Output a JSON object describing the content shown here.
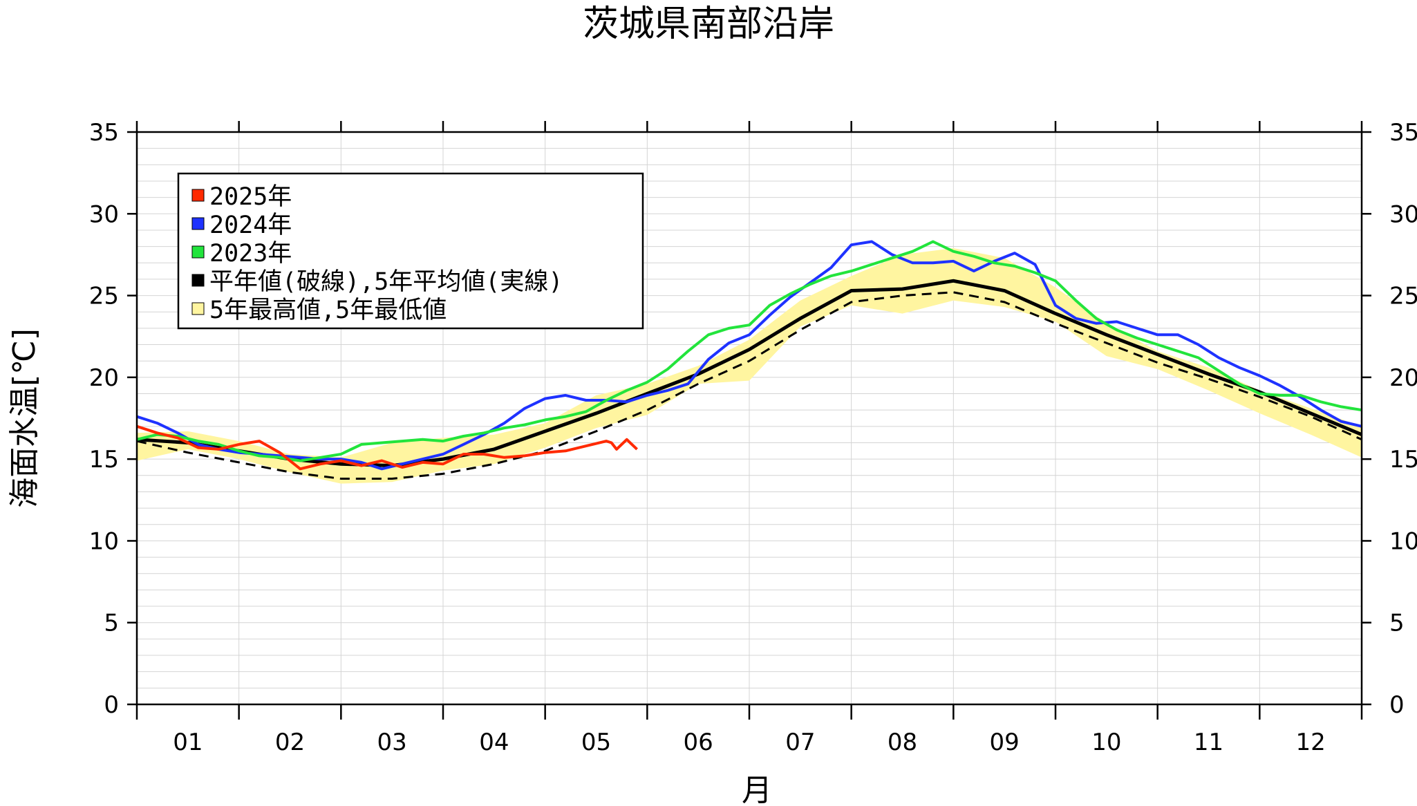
{
  "chart_data": {
    "type": "line",
    "title": "茨城県南部沿岸",
    "ylabel": "海面水温[℃]",
    "xlabel": "月",
    "xlim": [
      0,
      12
    ],
    "ylim": [
      0,
      35
    ],
    "yticks": [
      0,
      5,
      10,
      15,
      20,
      25,
      30,
      35
    ],
    "ytick_labels": [
      "0",
      "5",
      "10",
      "15",
      "20",
      "25",
      "30",
      "35"
    ],
    "month_labels": [
      "01",
      "02",
      "03",
      "04",
      "05",
      "06",
      "07",
      "08",
      "09",
      "10",
      "11",
      "12"
    ],
    "grid": true,
    "legend_position": "top-left",
    "colors": {
      "y2025": "#ff2a00",
      "y2024": "#1e32ff",
      "y2023": "#22e43c",
      "normal": "#000000",
      "band_fill": "#fff5a0"
    },
    "legend": [
      {
        "label": "2025年",
        "color": "#ff2a00"
      },
      {
        "label": "2024年",
        "color": "#1e32ff"
      },
      {
        "label": "2023年",
        "color": "#22e43c"
      },
      {
        "label": "平年値(破線),5年平均値(実線)",
        "color": "#000000"
      },
      {
        "label": "5年最高値,5年最低値",
        "color": "#fff5a0"
      }
    ],
    "band": {
      "x": [
        0,
        0.5,
        1.0,
        1.5,
        2.0,
        2.5,
        3.0,
        3.5,
        4.0,
        4.5,
        5.0,
        5.5,
        6.0,
        6.5,
        7.0,
        7.5,
        8.0,
        8.5,
        9.0,
        9.5,
        10.0,
        10.5,
        11.0,
        11.5,
        12.0
      ],
      "max": [
        16.6,
        16.7,
        16.1,
        15.3,
        15.1,
        16.0,
        16.3,
        16.5,
        17.2,
        18.9,
        19.6,
        20.7,
        22.3,
        24.7,
        26.2,
        27.5,
        27.9,
        27.3,
        25.5,
        23.3,
        21.6,
        20.6,
        19.2,
        18.1,
        17.0
      ],
      "min": [
        14.9,
        15.6,
        15.0,
        14.2,
        13.5,
        13.6,
        14.3,
        14.7,
        15.7,
        16.9,
        17.7,
        19.6,
        19.8,
        23.1,
        24.4,
        23.9,
        24.7,
        24.3,
        23.4,
        21.3,
        20.5,
        19.2,
        17.8,
        16.5,
        15.1
      ]
    },
    "series": [
      {
        "name": "2025年",
        "key": "y2025",
        "x": [
          0,
          0.2,
          0.4,
          0.6,
          0.8,
          1.0,
          1.2,
          1.4,
          1.6,
          1.8,
          2.0,
          2.2,
          2.4,
          2.6,
          2.8,
          3.0,
          3.2,
          3.4,
          3.6,
          3.8,
          4.0,
          4.2,
          4.4,
          4.6,
          4.65,
          4.7,
          4.8,
          4.85,
          4.9
        ],
        "y": [
          17.0,
          16.6,
          16.3,
          15.7,
          15.6,
          15.9,
          16.1,
          15.4,
          14.4,
          14.7,
          14.9,
          14.6,
          14.9,
          14.5,
          14.8,
          14.7,
          15.3,
          15.3,
          15.1,
          15.2,
          15.4,
          15.5,
          15.8,
          16.1,
          16.0,
          15.6,
          16.2,
          15.9,
          15.6
        ]
      },
      {
        "name": "2024年",
        "key": "y2024",
        "x": [
          0,
          0.2,
          0.4,
          0.6,
          0.8,
          1.0,
          1.2,
          1.4,
          1.6,
          1.8,
          2.0,
          2.2,
          2.4,
          2.6,
          2.8,
          3.0,
          3.2,
          3.4,
          3.6,
          3.8,
          4.0,
          4.2,
          4.4,
          4.6,
          4.8,
          5.0,
          5.2,
          5.4,
          5.6,
          5.8,
          6.0,
          6.2,
          6.4,
          6.6,
          6.8,
          7.0,
          7.2,
          7.4,
          7.6,
          7.8,
          8.0,
          8.2,
          8.4,
          8.6,
          8.8,
          9.0,
          9.2,
          9.4,
          9.6,
          9.8,
          10.0,
          10.2,
          10.4,
          10.6,
          10.8,
          11.0,
          11.2,
          11.4,
          11.6,
          11.8,
          12.0
        ],
        "y": [
          17.6,
          17.2,
          16.6,
          15.9,
          15.6,
          15.4,
          15.3,
          15.2,
          15.1,
          15.0,
          15.0,
          14.8,
          14.4,
          14.7,
          15.0,
          15.3,
          15.9,
          16.5,
          17.2,
          18.1,
          18.7,
          18.9,
          18.6,
          18.6,
          18.5,
          18.9,
          19.2,
          19.6,
          21.1,
          22.1,
          22.6,
          23.8,
          24.9,
          25.8,
          26.7,
          28.1,
          28.3,
          27.5,
          27.0,
          27.0,
          27.1,
          26.5,
          27.1,
          27.6,
          26.9,
          24.4,
          23.6,
          23.3,
          23.4,
          23.0,
          22.6,
          22.6,
          22.0,
          21.2,
          20.6,
          20.1,
          19.5,
          18.8,
          18.0,
          17.3,
          17.0
        ]
      },
      {
        "name": "2023年",
        "key": "y2023",
        "x": [
          0,
          0.2,
          0.4,
          0.6,
          0.8,
          1.0,
          1.2,
          1.4,
          1.6,
          1.8,
          2.0,
          2.2,
          2.4,
          2.6,
          2.8,
          3.0,
          3.2,
          3.4,
          3.6,
          3.8,
          4.0,
          4.2,
          4.4,
          4.6,
          4.8,
          5.0,
          5.2,
          5.4,
          5.6,
          5.8,
          6.0,
          6.2,
          6.4,
          6.6,
          6.8,
          7.0,
          7.2,
          7.4,
          7.6,
          7.8,
          8.0,
          8.2,
          8.4,
          8.6,
          8.8,
          9.0,
          9.2,
          9.4,
          9.6,
          9.8,
          10.0,
          10.2,
          10.4,
          10.6,
          10.8,
          11.0,
          11.2,
          11.4,
          11.6,
          11.8,
          12.0
        ],
        "y": [
          16.2,
          16.5,
          16.4,
          16.1,
          15.9,
          15.5,
          15.2,
          15.1,
          14.9,
          15.1,
          15.3,
          15.9,
          16.0,
          16.1,
          16.2,
          16.1,
          16.4,
          16.6,
          16.9,
          17.1,
          17.4,
          17.6,
          17.9,
          18.6,
          19.2,
          19.7,
          20.5,
          21.6,
          22.6,
          23.0,
          23.2,
          24.4,
          25.1,
          25.7,
          26.2,
          26.5,
          26.9,
          27.3,
          27.7,
          28.3,
          27.7,
          27.4,
          27.0,
          26.8,
          26.4,
          25.9,
          24.7,
          23.6,
          22.9,
          22.4,
          22.0,
          21.6,
          21.2,
          20.4,
          19.6,
          19.0,
          18.9,
          18.9,
          18.5,
          18.2,
          18.0
        ]
      },
      {
        "name": "5年平均値",
        "key": "normal",
        "style": "solid",
        "x": [
          0,
          0.5,
          1.0,
          1.5,
          2.0,
          2.5,
          3.0,
          3.5,
          4.0,
          4.5,
          5.0,
          5.5,
          6.0,
          6.5,
          7.0,
          7.5,
          8.0,
          8.5,
          9.0,
          9.5,
          10.0,
          10.5,
          11.0,
          11.5,
          12.0
        ],
        "y": [
          16.2,
          16.0,
          15.5,
          15.0,
          14.7,
          14.6,
          15.0,
          15.6,
          16.7,
          17.8,
          19.0,
          20.2,
          21.7,
          23.6,
          25.3,
          25.4,
          25.9,
          25.3,
          23.9,
          22.6,
          21.4,
          20.2,
          19.1,
          17.8,
          16.5
        ]
      },
      {
        "name": "平年値",
        "key": "normal",
        "style": "dashed",
        "x": [
          0,
          0.5,
          1.0,
          1.5,
          2.0,
          2.5,
          3.0,
          3.5,
          4.0,
          4.5,
          5.0,
          5.5,
          6.0,
          6.5,
          7.0,
          7.5,
          8.0,
          8.5,
          9.0,
          9.5,
          10.0,
          10.5,
          11.0,
          11.5,
          12.0
        ],
        "y": [
          16.1,
          15.4,
          14.8,
          14.2,
          13.8,
          13.8,
          14.1,
          14.7,
          15.5,
          16.7,
          18.0,
          19.6,
          21.0,
          22.9,
          24.6,
          25.0,
          25.2,
          24.6,
          23.3,
          22.1,
          20.9,
          19.9,
          18.8,
          17.6,
          16.2
        ]
      }
    ]
  }
}
